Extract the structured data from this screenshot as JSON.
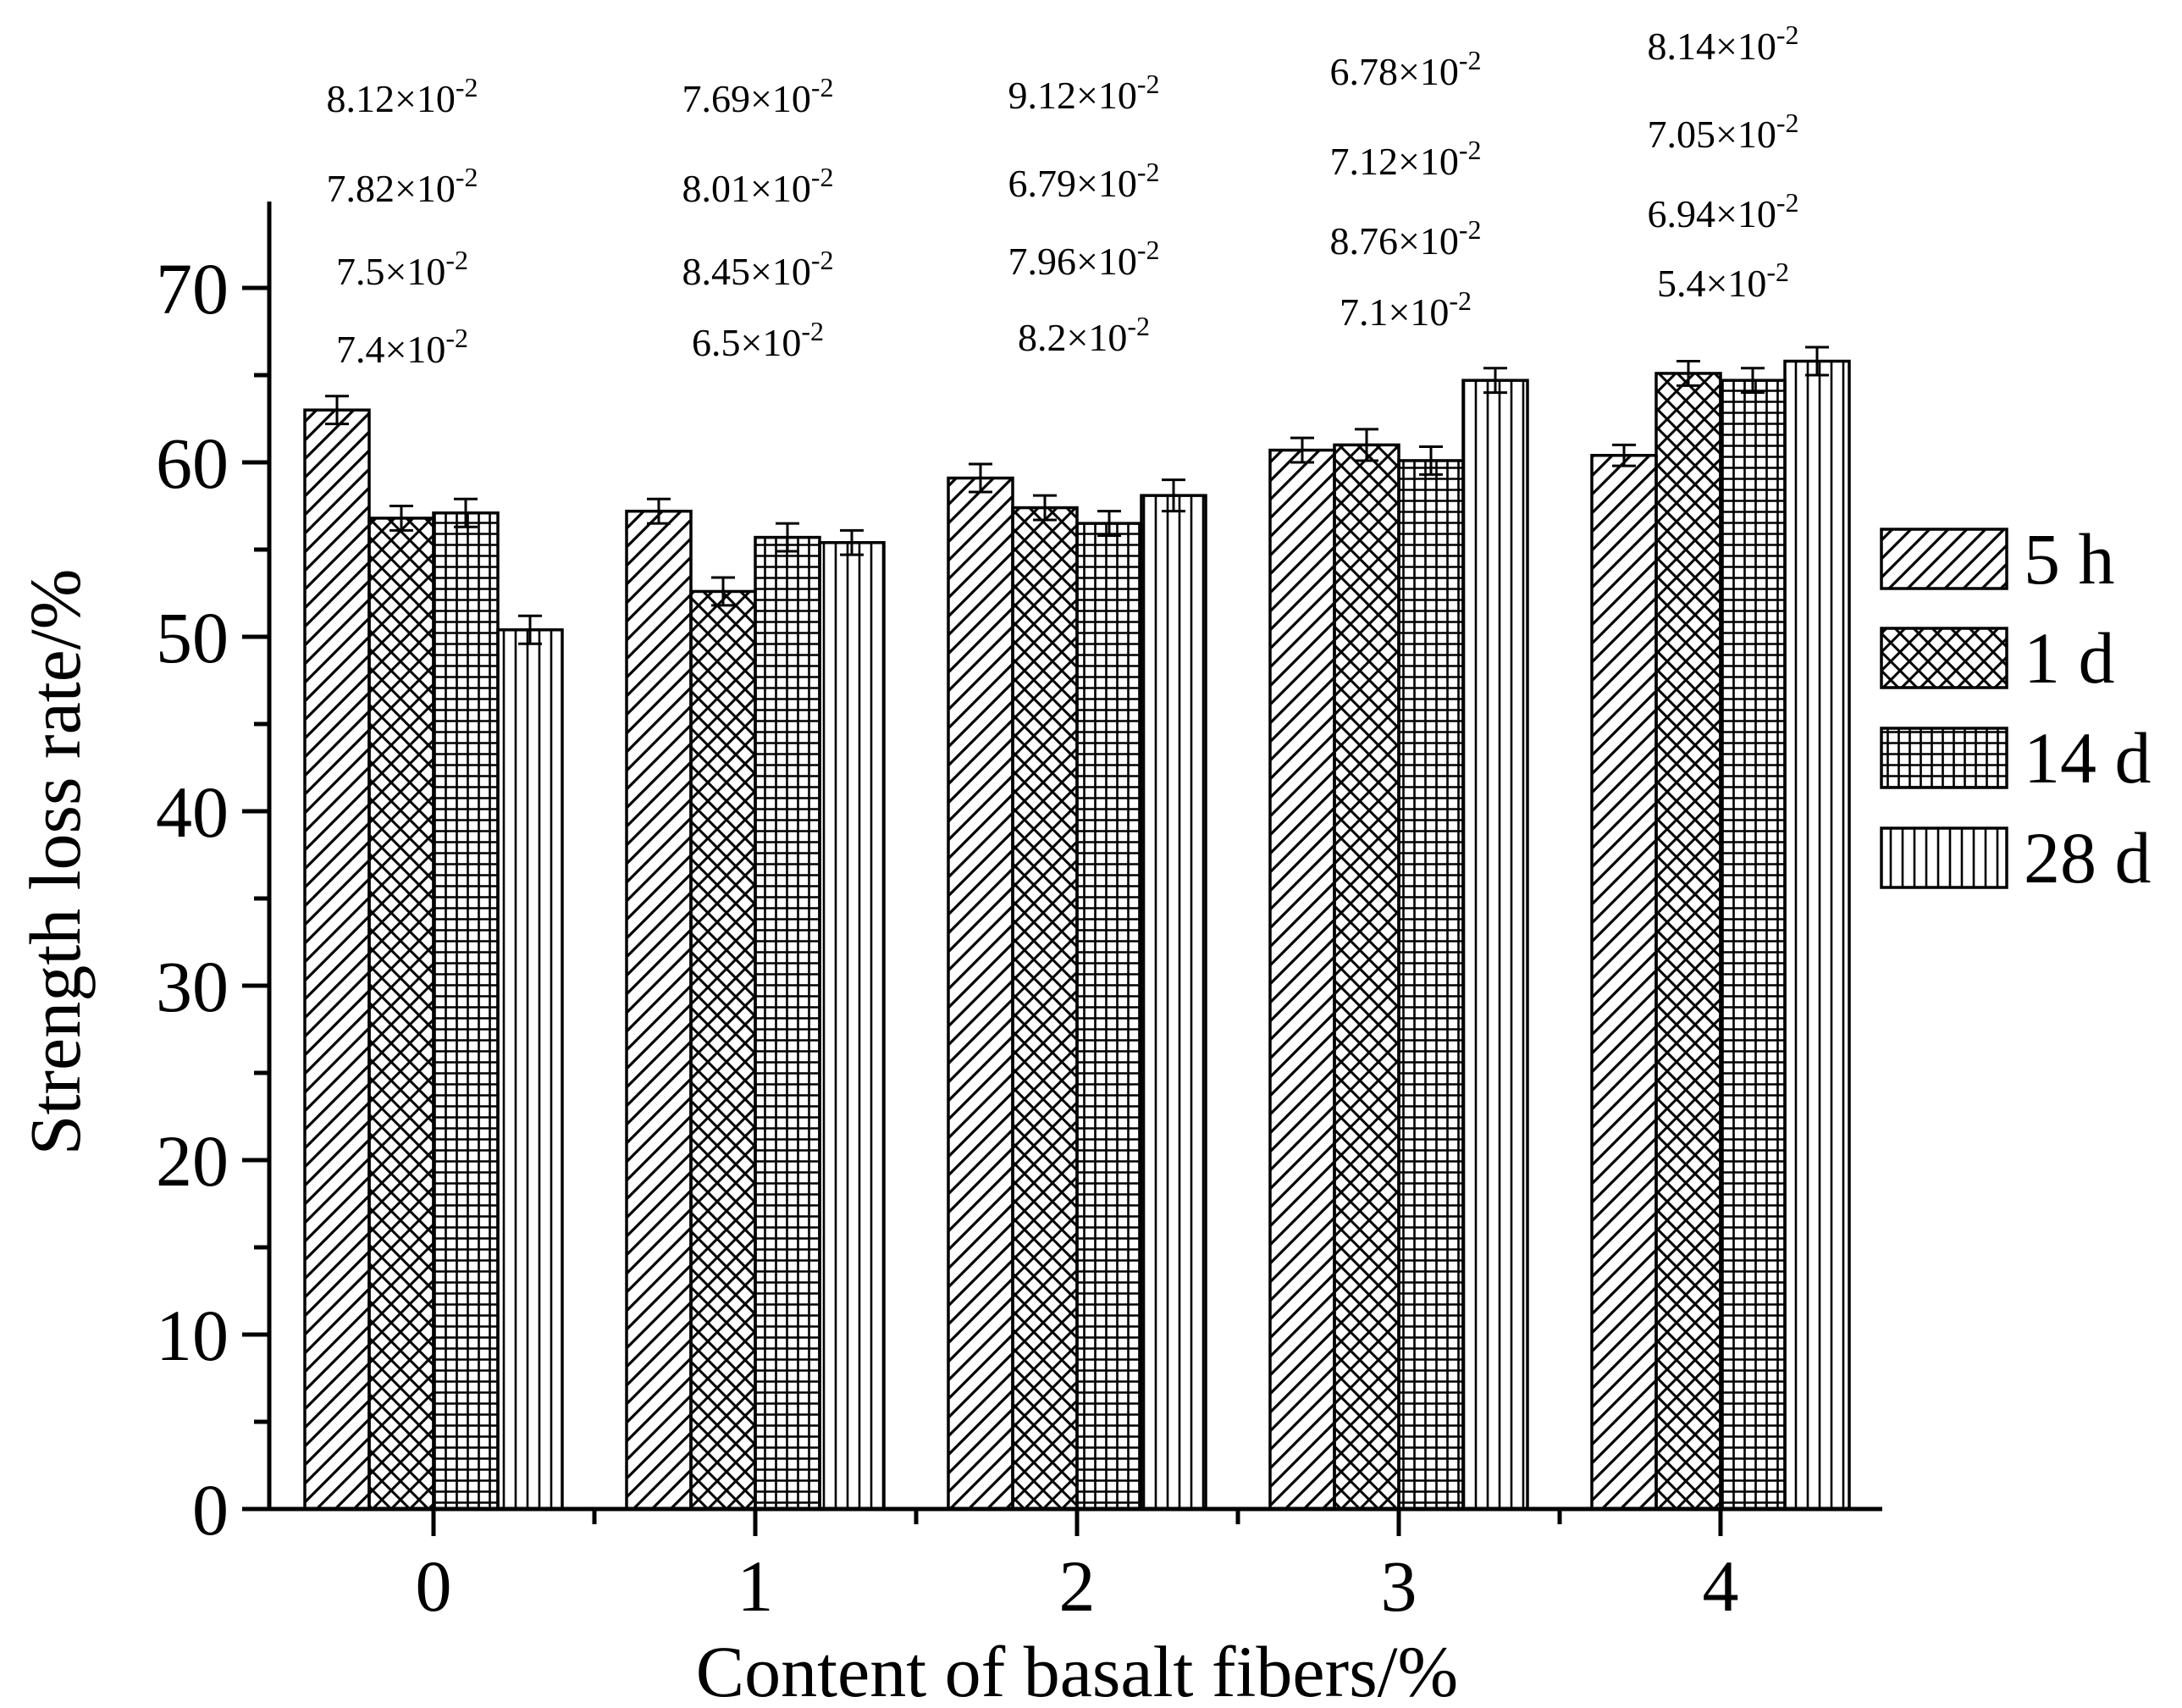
{
  "chart_data": {
    "type": "bar",
    "title": "",
    "xlabel": "Content of basalt fibers/%",
    "ylabel": "Strength loss rate/%",
    "categories": [
      "0",
      "1",
      "2",
      "3",
      "4"
    ],
    "ylim": [
      0,
      75
    ],
    "yticks": [
      0,
      10,
      20,
      30,
      40,
      50,
      60,
      70
    ],
    "yticklabels": [
      "0",
      "10",
      "20",
      "30",
      "40",
      "50",
      "60",
      "70"
    ],
    "legend_position": "right",
    "series": [
      {
        "name": "5 h",
        "pattern": "diagonal-hatch",
        "values": [
          63.0,
          57.2,
          59.1,
          60.7,
          60.4
        ],
        "errors": [
          0.8,
          0.7,
          0.8,
          0.7,
          0.6
        ]
      },
      {
        "name": "1 d",
        "pattern": "crosshatch",
        "values": [
          56.8,
          52.6,
          57.4,
          61.0,
          65.1
        ],
        "errors": [
          0.7,
          0.8,
          0.7,
          0.9,
          0.7
        ]
      },
      {
        "name": "14 d",
        "pattern": "grid",
        "values": [
          57.1,
          55.7,
          56.5,
          60.1,
          64.7
        ],
        "errors": [
          0.8,
          0.8,
          0.7,
          0.8,
          0.7
        ]
      },
      {
        "name": "28 d",
        "pattern": "vertical-lines",
        "values": [
          50.4,
          55.4,
          58.1,
          64.7,
          65.8
        ],
        "errors": [
          0.8,
          0.7,
          0.9,
          0.7,
          0.8
        ]
      }
    ],
    "annotations": [
      {
        "category": "0",
        "labels": [
          {
            "mantissa": "8.12",
            "exponent": "-2"
          },
          {
            "mantissa": "7.82",
            "exponent": "-2"
          },
          {
            "mantissa": "7.5",
            "exponent": "-2"
          },
          {
            "mantissa": "7.4",
            "exponent": "-2"
          }
        ]
      },
      {
        "category": "1",
        "labels": [
          {
            "mantissa": "7.69",
            "exponent": "-2"
          },
          {
            "mantissa": "8.01",
            "exponent": "-2"
          },
          {
            "mantissa": "8.45",
            "exponent": "-2"
          },
          {
            "mantissa": "6.5",
            "exponent": "-2"
          }
        ]
      },
      {
        "category": "2",
        "labels": [
          {
            "mantissa": "9.12",
            "exponent": "-2"
          },
          {
            "mantissa": "6.79",
            "exponent": "-2"
          },
          {
            "mantissa": "7.96",
            "exponent": "-2"
          },
          {
            "mantissa": "8.2",
            "exponent": "-2"
          }
        ]
      },
      {
        "category": "3",
        "labels": [
          {
            "mantissa": "6.78",
            "exponent": "-2"
          },
          {
            "mantissa": "7.12",
            "exponent": "-2"
          },
          {
            "mantissa": "8.76",
            "exponent": "-2"
          },
          {
            "mantissa": "7.1",
            "exponent": "-2"
          }
        ]
      },
      {
        "category": "4",
        "labels": [
          {
            "mantissa": "8.14",
            "exponent": "-2"
          },
          {
            "mantissa": "7.05",
            "exponent": "-2"
          },
          {
            "mantissa": "6.94",
            "exponent": "-2"
          },
          {
            "mantissa": "5.4",
            "exponent": "-2"
          }
        ]
      }
    ]
  }
}
